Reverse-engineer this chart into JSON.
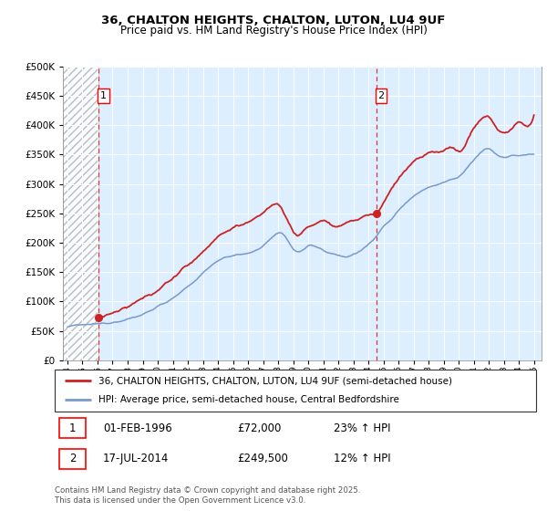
{
  "title1": "36, CHALTON HEIGHTS, CHALTON, LUTON, LU4 9UF",
  "title2": "Price paid vs. HM Land Registry's House Price Index (HPI)",
  "sale1_year": 1996.08,
  "sale1_price": 72000,
  "sale1_date": "01-FEB-1996",
  "sale1_hpi": "23% ↑ HPI",
  "sale2_year": 2014.54,
  "sale2_price": 249500,
  "sale2_date": "17-JUL-2014",
  "sale2_hpi": "12% ↑ HPI",
  "legend_line1": "36, CHALTON HEIGHTS, CHALTON, LUTON, LU4 9UF (semi-detached house)",
  "legend_line2": "HPI: Average price, semi-detached house, Central Bedfordshire",
  "footer": "Contains HM Land Registry data © Crown copyright and database right 2025.\nThis data is licensed under the Open Government Licence v3.0.",
  "line_color_red": "#cc2222",
  "line_color_blue": "#7799cc",
  "bg_color": "#ddeeff",
  "ylim": [
    0,
    500000
  ],
  "xlim_start": 1993.7,
  "xlim_end": 2025.5
}
